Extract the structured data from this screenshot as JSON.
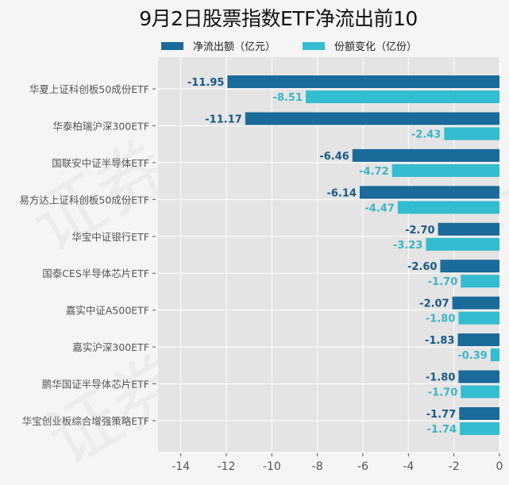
{
  "chart_data": {
    "type": "bar",
    "orientation": "horizontal",
    "title": "9月2日股票指数ETF净流出前10",
    "categories": [
      "华夏上证科创板50成份ETF",
      "华泰柏瑞沪深300ETF",
      "国联安中证半导体ETF",
      "易方达上证科创板50成份ETF",
      "华宝中证银行ETF",
      "国泰CES半导体芯片ETF",
      "嘉实中证A500ETF",
      "嘉实沪深300ETF",
      "鹏华国证半导体芯片ETF",
      "华宝创业板综合增强策略ETF"
    ],
    "series": [
      {
        "name": "净流出额（亿元）",
        "color": "#1a6a9a",
        "values": [
          -11.95,
          -11.17,
          -6.46,
          -6.14,
          -2.7,
          -2.6,
          -2.07,
          -1.83,
          -1.8,
          -1.77
        ],
        "labels": [
          "-11.95",
          "-11.17",
          "-6.46",
          "-6.14",
          "-2.70",
          "-2.60",
          "-2.07",
          "-1.83",
          "-1.80",
          "-1.77"
        ]
      },
      {
        "name": "份额变化（亿份）",
        "color": "#34bcd0",
        "values": [
          -8.51,
          -2.43,
          -4.72,
          -4.47,
          -3.23,
          -1.7,
          -1.8,
          -0.39,
          -1.7,
          -1.74
        ],
        "labels": [
          "-8.51",
          "-2.43",
          "-4.72",
          "-4.47",
          "-3.23",
          "-1.70",
          "-1.80",
          "-0.39",
          "-1.70",
          "-1.74"
        ]
      }
    ],
    "xlim": [
      -15,
      0
    ],
    "xticks": [
      -14,
      -12,
      -10,
      -8,
      -6,
      -4,
      -2,
      0
    ],
    "xtick_labels": [
      "-14",
      "-12",
      "-10",
      "-8",
      "-6",
      "-4",
      "-2",
      "0"
    ],
    "xlabel": "",
    "ylabel": "",
    "grid": true,
    "legend_position": "top-center"
  },
  "watermark": "证券之星"
}
